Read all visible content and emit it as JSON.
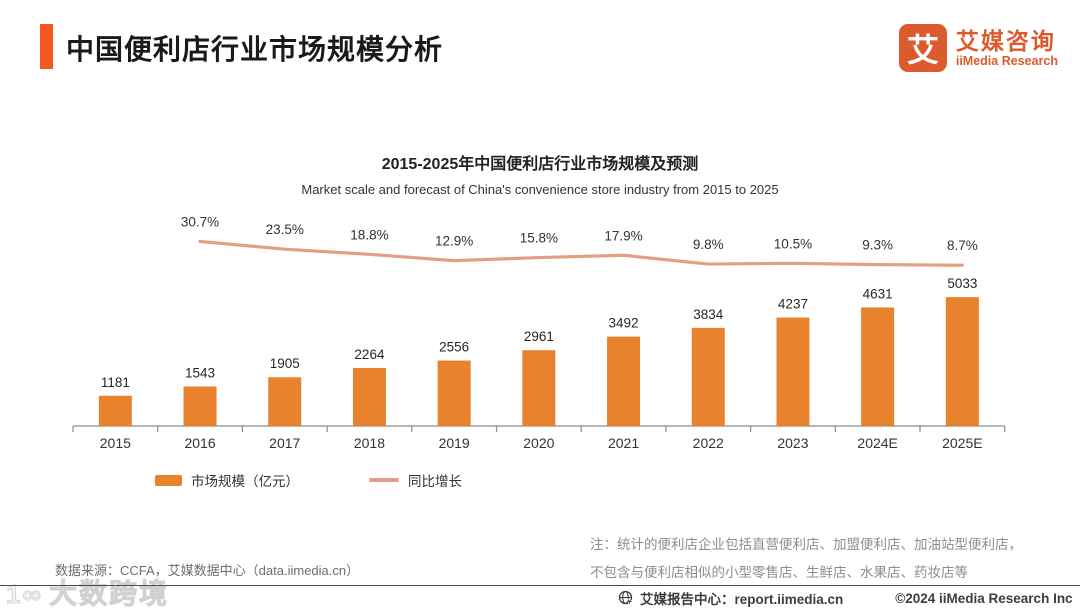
{
  "header": {
    "title": "中国便利店行业市场规模分析",
    "logo": {
      "glyph": "艾",
      "name_cn": "艾媒咨询",
      "name_en": "iiMedia Research"
    }
  },
  "chart_data": {
    "type": "bar",
    "title": "2015-2025年中国便利店行业市场规模及预测",
    "subtitle": "Market scale and forecast of China's convenience store industry from 2015 to 2025",
    "categories": [
      "2015",
      "2016",
      "2017",
      "2018",
      "2019",
      "2020",
      "2021",
      "2022",
      "2023",
      "2024E",
      "2025E"
    ],
    "series": [
      {
        "name": "市场规模（亿元）",
        "type": "bar",
        "values": [
          1181,
          1543,
          1905,
          2264,
          2556,
          2961,
          3492,
          3834,
          4237,
          4631,
          5033
        ]
      },
      {
        "name": "同比增长",
        "type": "line",
        "unit": "%",
        "values": [
          null,
          30.7,
          23.5,
          18.8,
          12.9,
          15.8,
          17.9,
          9.8,
          10.5,
          9.3,
          8.7
        ]
      }
    ],
    "ylabel": "",
    "xlabel": "",
    "grid": false,
    "legend_position": "bottom"
  },
  "legend": {
    "bar_label": "市场规模（亿元）",
    "line_label": "同比增长"
  },
  "source": "数据来源：CCFA，艾媒数据中心（data.iimedia.cn）",
  "note": {
    "line1": "注：统计的便利店企业包括直营便利店、加盟便利店、加油站型便利店，",
    "line2": "不包含与便利店相似的小型零售店、生鲜店、水果店、药妆店等"
  },
  "footer": {
    "report_center": "艾媒报告中心：report.iimedia.cn",
    "copyright": "©2024  iiMedia Research Inc"
  },
  "watermark": {
    "logo": "1∞",
    "text": "大数跨境"
  },
  "colors": {
    "accent": "#F4581F",
    "logo": "#DC5A2E",
    "bar": "#E8822D",
    "line": "#E2A080",
    "axis": "#8c8c8c",
    "value_label": "#262626",
    "pct_label": "#333333"
  }
}
